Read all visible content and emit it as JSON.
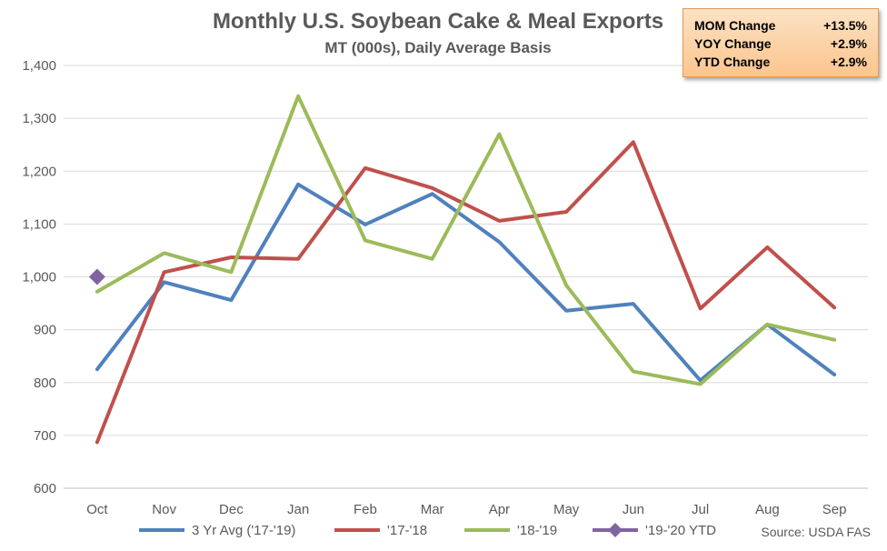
{
  "chart_data": {
    "type": "line",
    "title": "Monthly U.S. Soybean Cake & Meal Exports",
    "subtitle": "MT (000s), Daily Average Basis",
    "categories": [
      "Oct",
      "Nov",
      "Dec",
      "Jan",
      "Feb",
      "Mar",
      "Apr",
      "May",
      "Jun",
      "Jul",
      "Aug",
      "Sep"
    ],
    "ylim": [
      600,
      1400
    ],
    "yticks": [
      600,
      700,
      800,
      900,
      1000,
      1100,
      1200,
      1300,
      1400
    ],
    "ytick_labels": [
      "600",
      "700",
      "800",
      "900",
      "1,000",
      "1,100",
      "1,200",
      "1,300",
      "1,400"
    ],
    "grid": true,
    "legend_position": "bottom",
    "series": [
      {
        "name": "3 Yr Avg ('17-'19)",
        "color": "#4f81bd",
        "style": "line",
        "values": [
          825,
          990,
          956,
          1175,
          1099,
          1157,
          1066,
          936,
          949,
          804,
          910,
          815
        ]
      },
      {
        "name": "'17-'18",
        "color": "#c0504d",
        "style": "line",
        "values": [
          687,
          1009,
          1037,
          1034,
          1206,
          1168,
          1106,
          1123,
          1255,
          940,
          1056,
          942
        ]
      },
      {
        "name": "'18-'19",
        "color": "#9bbb59",
        "style": "line",
        "values": [
          972,
          1045,
          1009,
          1342,
          1069,
          1034,
          1270,
          984,
          821,
          797,
          910,
          881
        ]
      },
      {
        "name": "'19-'20 YTD",
        "color": "#8064a2",
        "style": "marker",
        "values": [
          1000,
          null,
          null,
          null,
          null,
          null,
          null,
          null,
          null,
          null,
          null,
          null
        ]
      }
    ],
    "source": "Source: USDA FAS"
  },
  "stats": [
    {
      "label": "MOM Change",
      "value": "+13.5%"
    },
    {
      "label": "YOY Change",
      "value": "+2.9%"
    },
    {
      "label": "YTD Change",
      "value": "+2.9%"
    }
  ]
}
